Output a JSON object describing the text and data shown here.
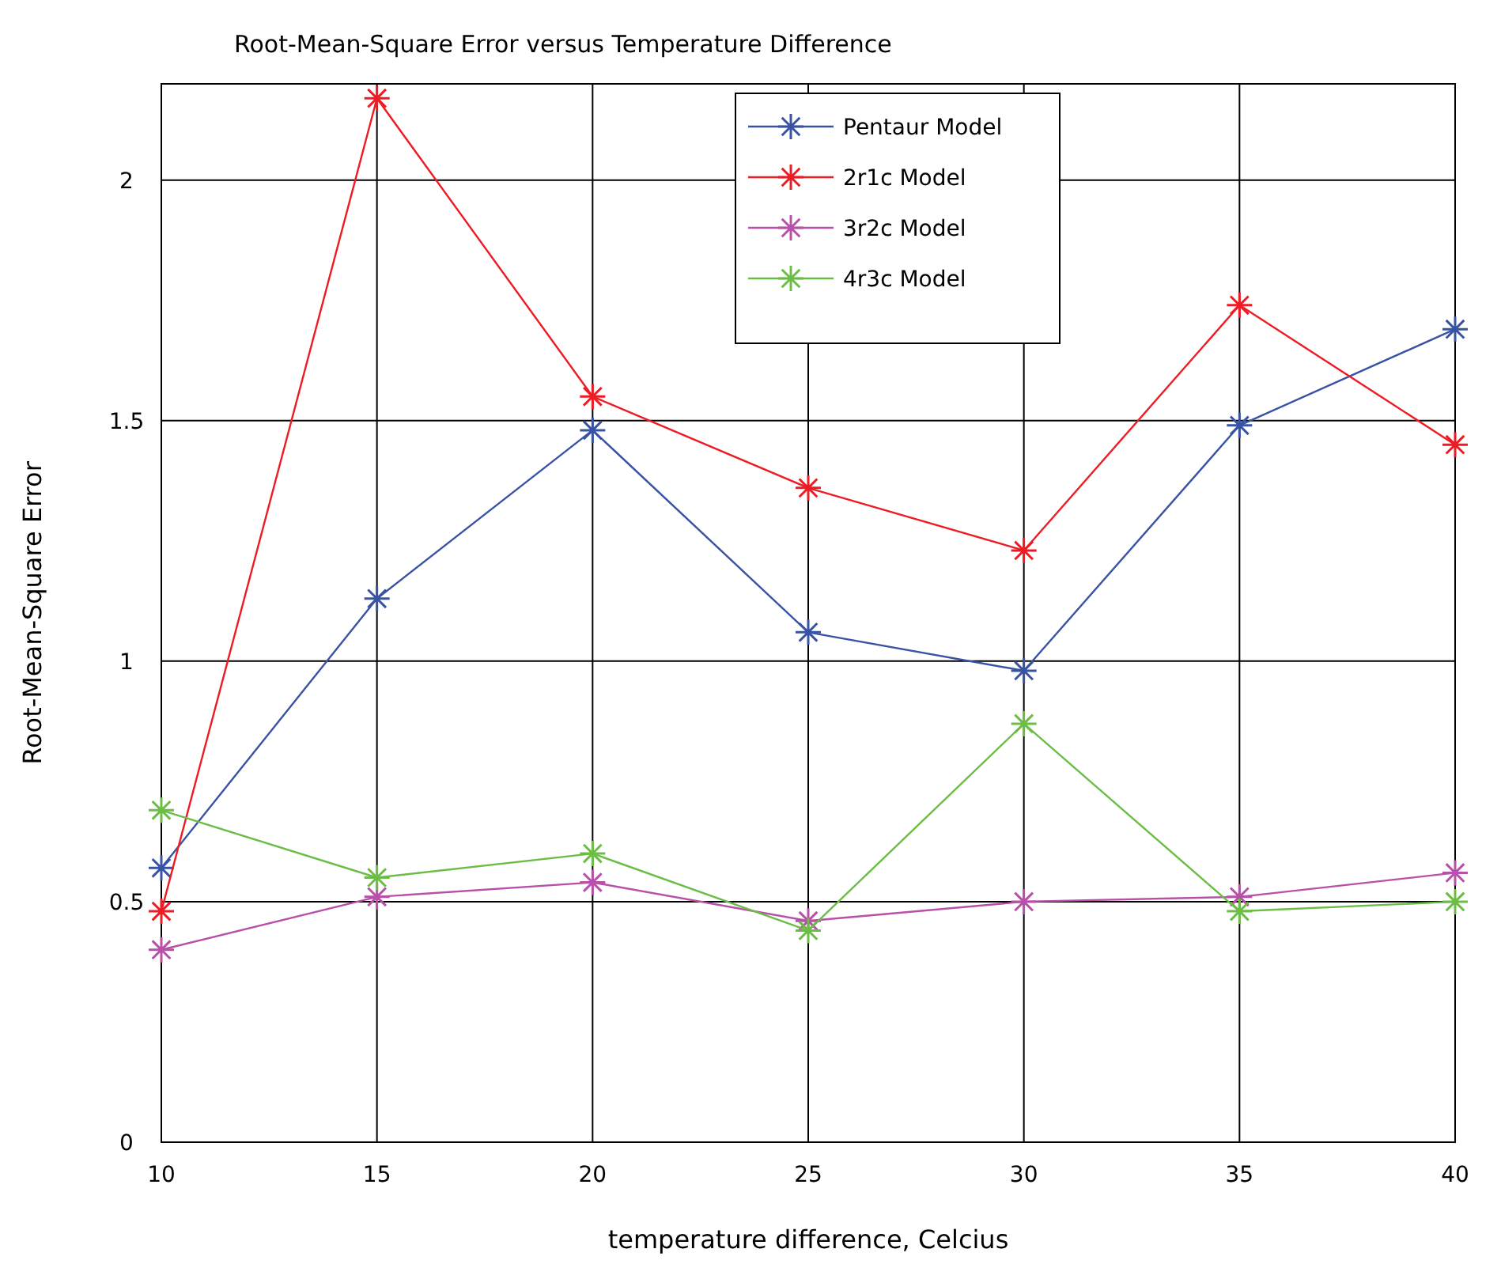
{
  "chart_data": {
    "type": "line",
    "title": "Root-Mean-Square Error versus Temperature Difference",
    "xlabel": "temperature difference, Celcius",
    "ylabel": "Root-Mean-Square Error",
    "x": [
      10,
      15,
      20,
      25,
      30,
      35,
      40
    ],
    "series": [
      {
        "name": "Pentaur Model",
        "color": "#3953a4",
        "values": [
          0.57,
          1.13,
          1.48,
          1.06,
          0.98,
          1.49,
          1.69
        ]
      },
      {
        "name": "2r1c Model",
        "color": "#ed1c24",
        "values": [
          0.48,
          2.17,
          1.55,
          1.36,
          1.23,
          1.74,
          1.45
        ]
      },
      {
        "name": "3r2c Model",
        "color": "#b84fa8",
        "values": [
          0.4,
          0.51,
          0.54,
          0.46,
          0.5,
          0.51,
          0.56
        ]
      },
      {
        "name": "4r3c Model",
        "color": "#6cbd45",
        "values": [
          0.69,
          0.55,
          0.6,
          0.44,
          0.87,
          0.48,
          0.5
        ]
      }
    ],
    "xlim": [
      10,
      40
    ],
    "xticks": [
      10,
      15,
      20,
      25,
      30,
      35,
      40
    ],
    "ylim": [
      0,
      2.2
    ],
    "yticks": [
      0,
      0.5,
      1,
      1.5,
      2
    ],
    "grid": true,
    "legend": "top right",
    "marker": "cross",
    "line_style": "solid"
  }
}
